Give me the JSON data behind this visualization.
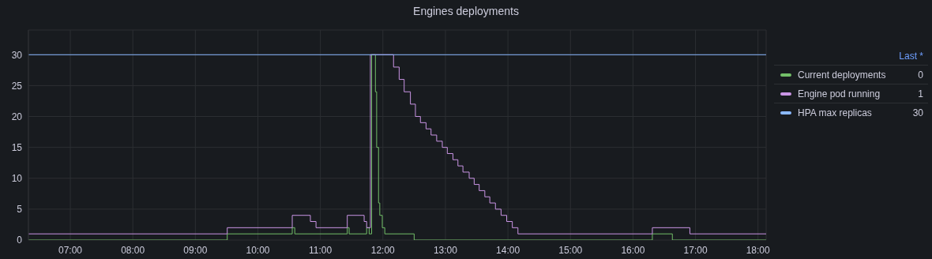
{
  "chart_data": {
    "type": "step",
    "title": "Engines deployments",
    "legend_title": "Last *",
    "annotations": [
      "0",
      "1",
      "30"
    ],
    "legend": "right",
    "grid": true,
    "marker": "none",
    "line_style": "solid",
    "xlim": [
      6.33,
      18.13
    ],
    "xticks": [
      {
        "value": 7,
        "label": "07:00"
      },
      {
        "value": 8,
        "label": "08:00"
      },
      {
        "value": 9,
        "label": "09:00"
      },
      {
        "value": 10,
        "label": "10:00"
      },
      {
        "value": 11,
        "label": "11:00"
      },
      {
        "value": 12,
        "label": "12:00"
      },
      {
        "value": 13,
        "label": "13:00"
      },
      {
        "value": 14,
        "label": "14:00"
      },
      {
        "value": 15,
        "label": "15:00"
      },
      {
        "value": 16,
        "label": "16:00"
      },
      {
        "value": 17,
        "label": "17:00"
      },
      {
        "value": 18,
        "label": "18:00"
      }
    ],
    "ylim": [
      0,
      34
    ],
    "yticks": [
      0,
      5,
      10,
      15,
      20,
      25,
      30
    ],
    "series": [
      {
        "name": "Current deployments",
        "color": "#73bf69",
        "x": [
          6.33,
          9.51,
          10.55,
          10.59,
          11.43,
          11.46,
          11.74,
          11.78,
          11.82,
          11.86,
          11.88,
          11.9,
          11.93,
          11.95,
          11.99,
          12.03,
          12.5,
          16.31,
          16.63,
          18.13
        ],
        "values": [
          0,
          1,
          2,
          1,
          2,
          1,
          2,
          1,
          30,
          30,
          24,
          15,
          6,
          4,
          2,
          1,
          0,
          1,
          0,
          0
        ]
      },
      {
        "name": "Engine pod running",
        "color": "#ca95e5",
        "x": [
          6.33,
          9.51,
          10.55,
          10.84,
          10.93,
          11.43,
          11.7,
          11.74,
          11.8,
          12.17,
          12.26,
          12.34,
          12.44,
          12.52,
          12.6,
          12.69,
          12.77,
          12.86,
          12.95,
          13.03,
          13.12,
          13.2,
          13.28,
          13.38,
          13.46,
          13.54,
          13.63,
          13.71,
          13.8,
          13.89,
          13.98,
          14.07,
          14.16,
          16.31,
          16.91,
          18.13
        ],
        "values": [
          1,
          2,
          4,
          3,
          2,
          4,
          3,
          2,
          30,
          28,
          26,
          24,
          22,
          20,
          19,
          18,
          17,
          16,
          15,
          14,
          13,
          12,
          11,
          10,
          9,
          8,
          7,
          6,
          5,
          4,
          3,
          2,
          1,
          2,
          1,
          1
        ]
      },
      {
        "name": "HPA max replicas",
        "color": "#8ab8ff",
        "x": [
          6.33,
          18.13
        ],
        "values": [
          30,
          30
        ]
      }
    ]
  }
}
